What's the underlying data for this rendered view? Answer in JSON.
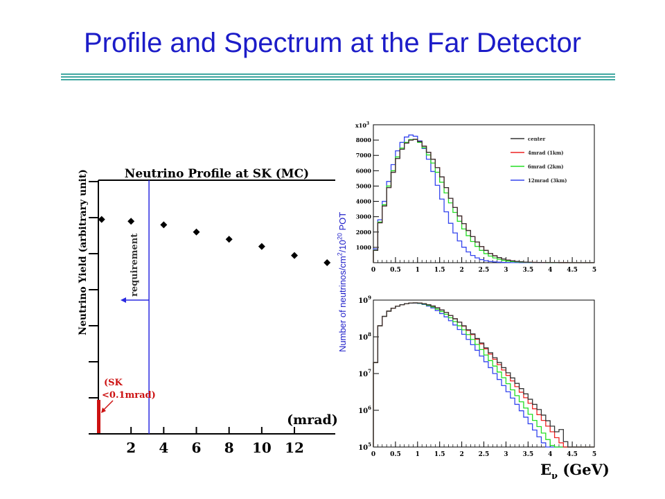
{
  "slide": {
    "title": "Profile and Spectrum at the Far Detector",
    "accent_color": "#1c1cc8",
    "rule_color": "#3fa7a0"
  },
  "chart_data": [
    {
      "type": "scatter",
      "title": "Neutrino Profile at SK (MC)",
      "xlabel": "(mrad)",
      "ylabel": "Neutrino Yield (arbitrary unit)",
      "xticks": [
        "2",
        "4",
        "6",
        "8",
        "10",
        "12"
      ],
      "xlim": [
        0,
        14.5
      ],
      "ylim": [
        0,
        1.4
      ],
      "points": {
        "x": [
          0.2,
          2,
          4,
          6,
          8,
          10,
          12,
          14
        ],
        "y": [
          1.19,
          1.18,
          1.16,
          1.12,
          1.08,
          1.04,
          0.99,
          0.95
        ]
      },
      "annotations": [
        {
          "text": "requirement",
          "x": 3.1,
          "color": "#2a2ae0"
        },
        {
          "text": "(SK <0.1mrad)",
          "x": 0.1,
          "color": "#cc1111"
        }
      ]
    },
    {
      "type": "line",
      "step": true,
      "x_unit": "GeV",
      "y_multiplier": "x10^3",
      "xlim": [
        0,
        5
      ],
      "ylim": [
        0,
        9000
      ],
      "xticks": [
        "0",
        "0.5",
        "1",
        "1.5",
        "2",
        "2.5",
        "3",
        "3.5",
        "4",
        "4.5",
        "5"
      ],
      "yticks": [
        "1000",
        "2000",
        "3000",
        "4000",
        "5000",
        "6000",
        "7000",
        "8000"
      ],
      "legend_position": "top-right",
      "x": [
        0.0,
        0.1,
        0.2,
        0.3,
        0.4,
        0.5,
        0.6,
        0.7,
        0.8,
        0.9,
        1.0,
        1.1,
        1.2,
        1.3,
        1.4,
        1.5,
        1.6,
        1.7,
        1.8,
        1.9,
        2.0,
        2.1,
        2.2,
        2.3,
        2.4,
        2.5,
        2.6,
        2.7,
        2.8,
        2.9,
        3.0,
        3.1,
        3.2,
        3.3,
        3.4,
        3.5,
        3.6,
        3.7,
        3.8,
        3.9,
        4.0,
        4.1,
        4.2,
        4.3,
        4.4,
        4.5,
        4.6,
        4.7,
        4.8,
        4.9
      ],
      "series": [
        {
          "name": "center",
          "color": "#333333",
          "values": [
            800,
            2600,
            3700,
            4900,
            5900,
            6800,
            7400,
            7800,
            8000,
            8050,
            7900,
            7600,
            7200,
            6750,
            6200,
            5600,
            4900,
            4200,
            3600,
            3050,
            2550,
            2100,
            1700,
            1350,
            1050,
            800,
            600,
            450,
            330,
            240,
            170,
            120,
            85,
            60,
            40,
            28,
            20,
            14,
            10,
            7,
            5,
            4,
            3,
            2,
            1,
            1,
            0,
            0,
            0,
            0
          ]
        },
        {
          "name": "4mrad (1km)",
          "color": "#ee2222",
          "values": [
            800,
            2600,
            3700,
            4900,
            5900,
            6800,
            7400,
            7800,
            8000,
            8050,
            7900,
            7600,
            7200,
            6750,
            6200,
            5600,
            4900,
            4200,
            3600,
            3050,
            2550,
            2100,
            1700,
            1350,
            1050,
            800,
            600,
            450,
            330,
            240,
            170,
            120,
            85,
            60,
            40,
            28,
            20,
            14,
            10,
            7,
            5,
            4,
            3,
            2,
            1,
            1,
            0,
            0,
            0,
            0
          ]
        },
        {
          "name": "6mrad (2km)",
          "color": "#22dd22",
          "values": [
            820,
            2650,
            3780,
            5000,
            6000,
            6900,
            7480,
            7850,
            8030,
            8040,
            7850,
            7500,
            7030,
            6500,
            5900,
            5250,
            4550,
            3900,
            3280,
            2700,
            2200,
            1760,
            1380,
            1060,
            800,
            590,
            430,
            310,
            220,
            150,
            105,
            72,
            50,
            34,
            23,
            16,
            11,
            7,
            5,
            3,
            2,
            1,
            1,
            0,
            0,
            0,
            0,
            0,
            0,
            0
          ]
        },
        {
          "name": "12mrad (3km)",
          "color": "#3344ee",
          "values": [
            900,
            2800,
            4000,
            5300,
            6400,
            7300,
            7850,
            8200,
            8330,
            8250,
            7950,
            7450,
            6750,
            5950,
            5050,
            4150,
            3320,
            2570,
            1940,
            1420,
            1010,
            700,
            470,
            310,
            200,
            125,
            80,
            50,
            30,
            18,
            11,
            7,
            4,
            2,
            1,
            1,
            0,
            0,
            0,
            0,
            0,
            0,
            0,
            0,
            0,
            0,
            0,
            0,
            0,
            0
          ]
        }
      ]
    },
    {
      "type": "line",
      "step": true,
      "log_y": true,
      "xlabel": "Eν (GeV)",
      "ylabel": "Number of neutrinos/cm²/10²⁰ POT",
      "xlim": [
        0,
        5
      ],
      "ylim": [
        100000,
        1000000000
      ],
      "xticks": [
        "0",
        "0.5",
        "1",
        "1.5",
        "2",
        "2.5",
        "3",
        "3.5",
        "4",
        "4.5",
        "5"
      ],
      "yticks": [
        "10^5",
        "10^6",
        "10^7",
        "10^8",
        "10^9"
      ],
      "x": [
        0.0,
        0.1,
        0.2,
        0.3,
        0.4,
        0.5,
        0.6,
        0.7,
        0.8,
        0.9,
        1.0,
        1.1,
        1.2,
        1.3,
        1.4,
        1.5,
        1.6,
        1.7,
        1.8,
        1.9,
        2.0,
        2.1,
        2.2,
        2.3,
        2.4,
        2.5,
        2.6,
        2.7,
        2.8,
        2.9,
        3.0,
        3.1,
        3.2,
        3.3,
        3.4,
        3.5,
        3.6,
        3.7,
        3.8,
        3.9,
        4.0,
        4.1,
        4.2,
        4.3,
        4.4,
        4.5,
        4.6,
        4.7,
        4.8,
        4.9
      ],
      "series": [
        {
          "color": "#333333",
          "values": [
            20000000.0,
            200000000.0,
            360000000.0,
            500000000.0,
            600000000.0,
            680000000.0,
            750000000.0,
            800000000.0,
            830000000.0,
            840000000.0,
            830000000.0,
            800000000.0,
            750000000.0,
            690000000.0,
            620000000.0,
            540000000.0,
            460000000.0,
            380000000.0,
            310000000.0,
            250000000.0,
            200000000.0,
            155000000.0,
            120000000.0,
            90000000.0,
            68000000.0,
            50000000.0,
            37000000.0,
            27000000.0,
            20000000.0,
            14500000.0,
            10500000.0,
            7600000.0,
            5400000.0,
            3900000.0,
            2800000.0,
            2000000.0,
            1450000.0,
            1050000.0,
            740000.0,
            520000.0,
            370000.0,
            260000.0,
            300000.0,
            140000.0,
            100000.0,
            100000.0,
            100000.0,
            100000.0,
            100000.0,
            100000.0
          ]
        },
        {
          "color": "#ee2222",
          "values": [
            20000000.0,
            200000000.0,
            360000000.0,
            500000000.0,
            600000000.0,
            680000000.0,
            750000000.0,
            800000000.0,
            830000000.0,
            840000000.0,
            830000000.0,
            800000000.0,
            750000000.0,
            690000000.0,
            620000000.0,
            540000000.0,
            460000000.0,
            380000000.0,
            310000000.0,
            250000000.0,
            195000000.0,
            150000000.0,
            115000000.0,
            86000000.0,
            64000000.0,
            47000000.0,
            34000000.0,
            24500000.0,
            17500000.0,
            12500000.0,
            8900000.0,
            6300000.0,
            4400000.0,
            3100000.0,
            2200000.0,
            1550000.0,
            1100000.0,
            760000.0,
            530000.0,
            370000.0,
            260000.0,
            180000.0,
            130000.0,
            100000.0,
            100000.0,
            100000.0,
            100000.0,
            100000.0,
            100000.0,
            100000.0
          ]
        },
        {
          "color": "#22dd22",
          "values": [
            20000000.0,
            200000000.0,
            360000000.0,
            500000000.0,
            600000000.0,
            680000000.0,
            750000000.0,
            800000000.0,
            830000000.0,
            840000000.0,
            820000000.0,
            780000000.0,
            720000000.0,
            650000000.0,
            570000000.0,
            490000000.0,
            410000000.0,
            330000000.0,
            260000000.0,
            200000000.0,
            155000000.0,
            115000000.0,
            85000000.0,
            62000000.0,
            45000000.0,
            32000000.0,
            22500000.0,
            16000000.0,
            11000000.0,
            7700000.0,
            5300000.0,
            3600000.0,
            2500000.0,
            1700000.0,
            1150000.0,
            780000.0,
            530000.0,
            360000.0,
            240000.0,
            160000.0,
            110000.0,
            100000.0,
            100000.0,
            100000.0,
            100000.0,
            100000.0,
            100000.0,
            100000.0,
            100000.0,
            100000.0
          ]
        },
        {
          "color": "#3344ee",
          "values": [
            20000000.0,
            200000000.0,
            360000000.0,
            500000000.0,
            600000000.0,
            680000000.0,
            750000000.0,
            800000000.0,
            830000000.0,
            830000000.0,
            810000000.0,
            760000000.0,
            690000000.0,
            610000000.0,
            520000000.0,
            430000000.0,
            350000000.0,
            275000000.0,
            210000000.0,
            158000000.0,
            117000000.0,
            85000000.0,
            61000000.0,
            43000000.0,
            30000000.0,
            21000000.0,
            14500000.0,
            10000000.0,
            6900000.0,
            4700000.0,
            3200000.0,
            2150000.0,
            1450000.0,
            970000.0,
            650000.0,
            430000.0,
            290000.0,
            190000.0,
            130000.0,
            100000.0,
            100000.0,
            100000.0,
            100000.0,
            100000.0,
            100000.0,
            100000.0,
            100000.0,
            100000.0,
            100000.0,
            100000.0
          ]
        }
      ]
    }
  ]
}
